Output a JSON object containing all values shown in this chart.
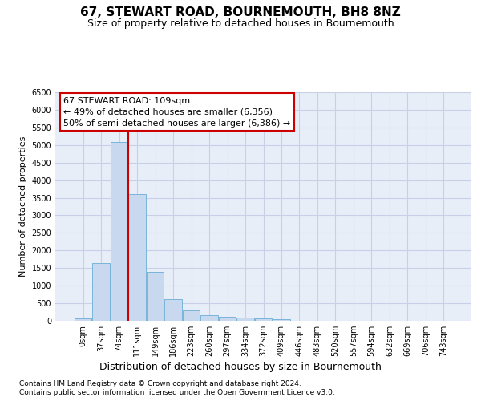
{
  "title_main": "67, STEWART ROAD, BOURNEMOUTH, BH8 8NZ",
  "title_sub": "Size of property relative to detached houses in Bournemouth",
  "xlabel": "Distribution of detached houses by size in Bournemouth",
  "ylabel": "Number of detached properties",
  "footer1": "Contains HM Land Registry data © Crown copyright and database right 2024.",
  "footer2": "Contains public sector information licensed under the Open Government Licence v3.0.",
  "bin_labels": [
    "0sqm",
    "37sqm",
    "74sqm",
    "111sqm",
    "149sqm",
    "186sqm",
    "223sqm",
    "260sqm",
    "297sqm",
    "334sqm",
    "372sqm",
    "409sqm",
    "446sqm",
    "483sqm",
    "520sqm",
    "557sqm",
    "594sqm",
    "632sqm",
    "669sqm",
    "706sqm",
    "743sqm"
  ],
  "bar_values": [
    75,
    1650,
    5080,
    3600,
    1400,
    620,
    290,
    160,
    120,
    85,
    65,
    55,
    0,
    0,
    0,
    0,
    0,
    0,
    0,
    0,
    0
  ],
  "bar_color": "#c8d9ef",
  "bar_edge_color": "#6aadd5",
  "vline_x_idx": 2,
  "vline_color": "#cc0000",
  "annotation_text": "67 STEWART ROAD: 109sqm\n← 49% of detached houses are smaller (6,356)\n50% of semi-detached houses are larger (6,386) →",
  "annotation_box_edgecolor": "#cc0000",
  "ylim_max": 6500,
  "yticks": [
    0,
    500,
    1000,
    1500,
    2000,
    2500,
    3000,
    3500,
    4000,
    4500,
    5000,
    5500,
    6000,
    6500
  ],
  "grid_color": "#c8d0e8",
  "bg_color": "#e8eef8",
  "title_fontsize": 11,
  "subtitle_fontsize": 9,
  "ylabel_fontsize": 8,
  "xlabel_fontsize": 9,
  "tick_fontsize": 7,
  "footer_fontsize": 6.5,
  "annotation_fontsize": 8
}
